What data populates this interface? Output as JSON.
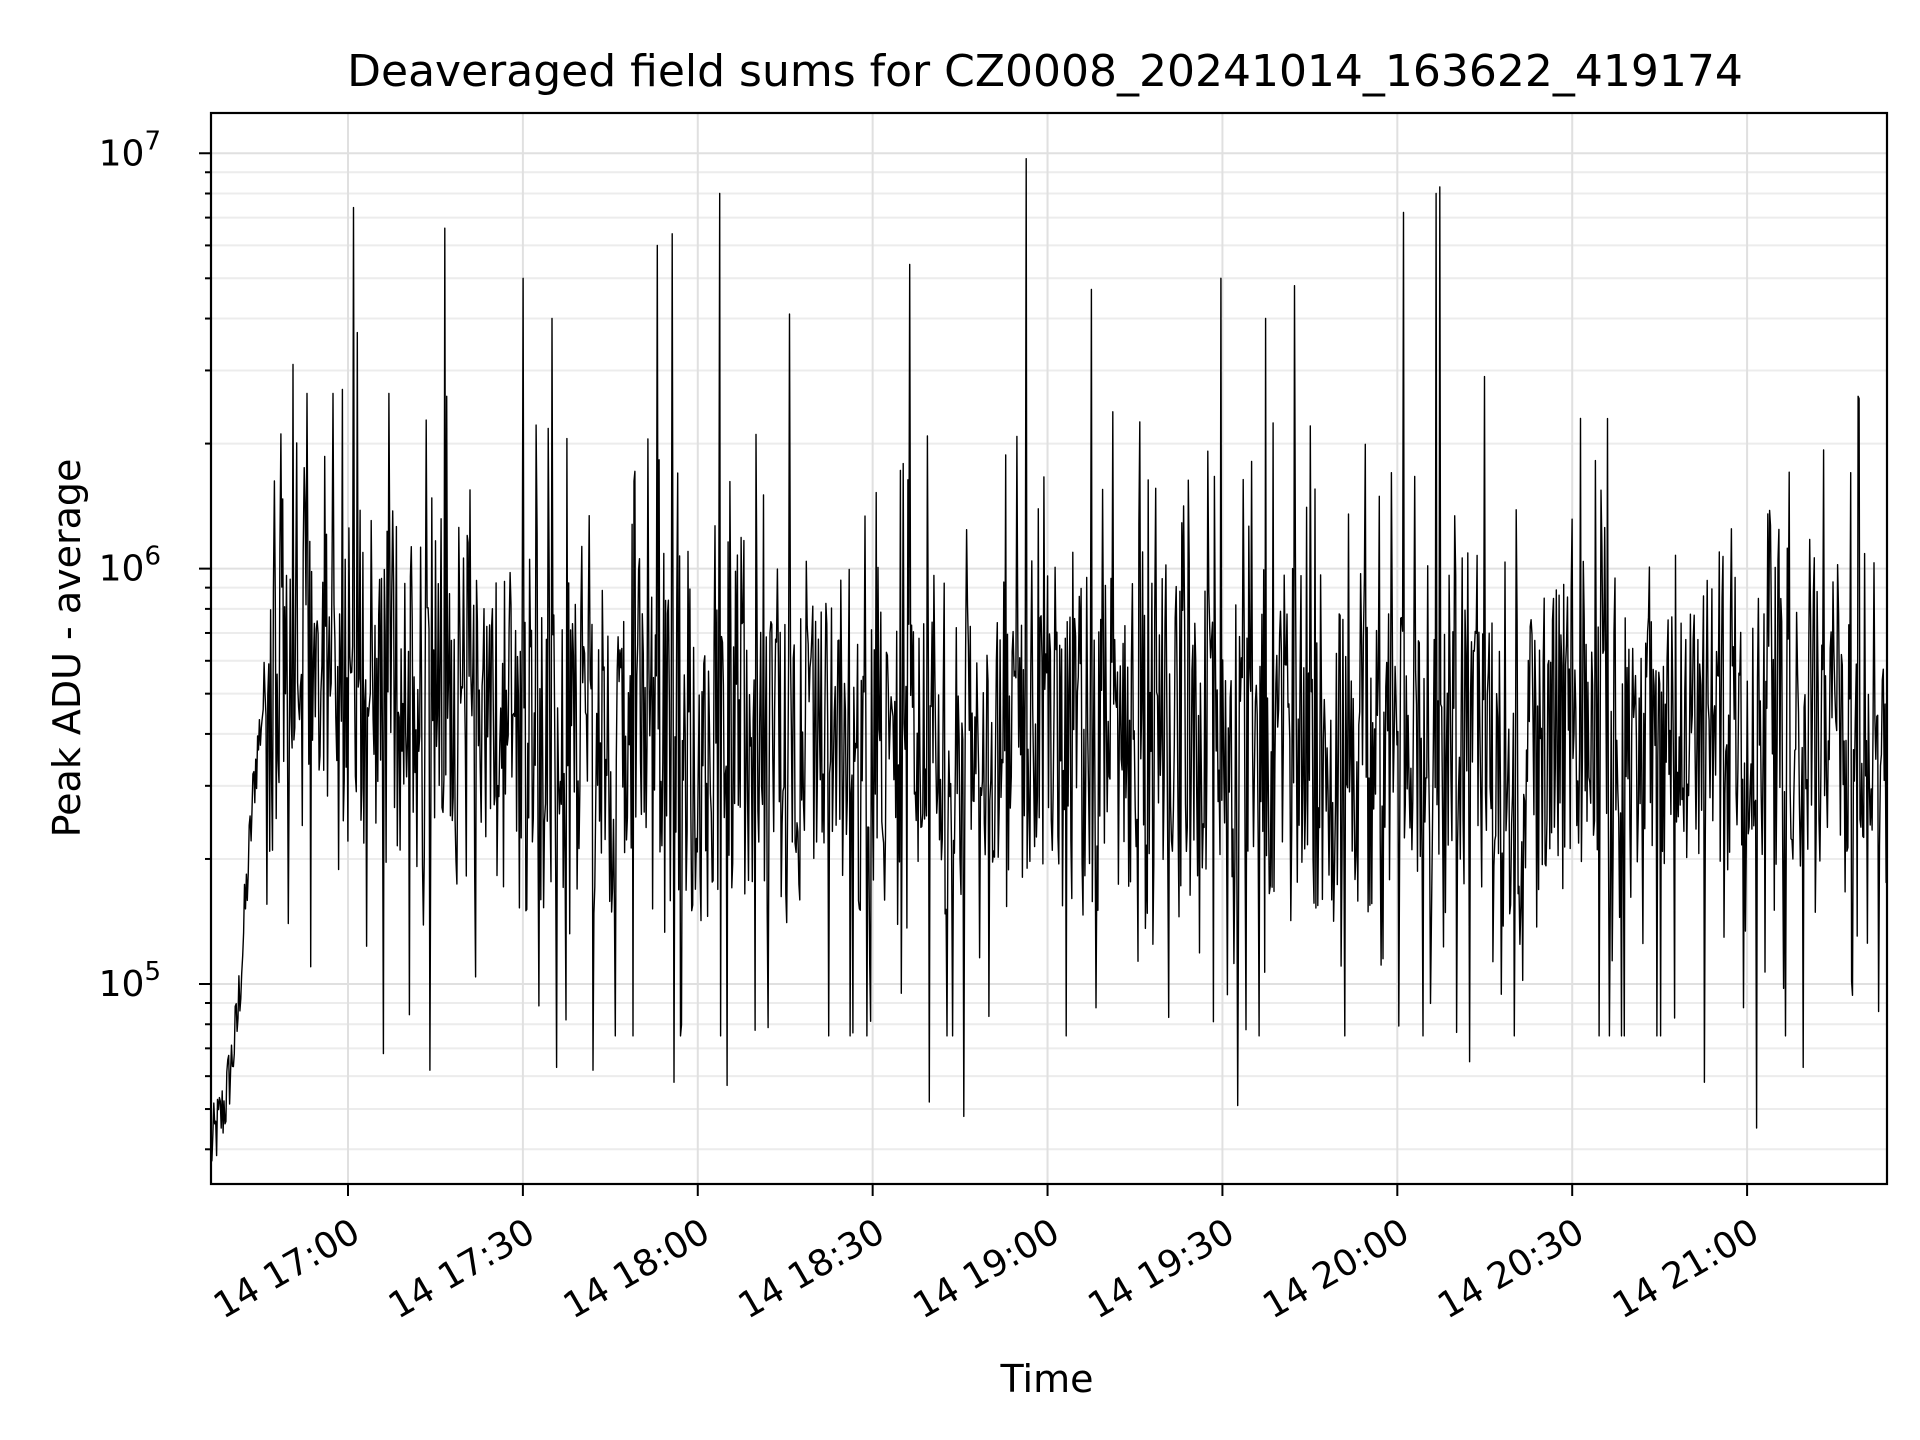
{
  "chart_data": {
    "type": "line",
    "title": "Deaveraged field sums for CZ0008_20241014_163622_419174",
    "xlabel": "Time",
    "ylabel": "Peak ADU - average",
    "y_scale": "log",
    "ylim": [
      33000,
      12500000
    ],
    "xlim": [
      "2024-10-14 16:36:30",
      "2024-10-14 21:24:00"
    ],
    "grid": "on (major and minor y)",
    "x_ticks": [
      "2024-10-14 17:00",
      "2024-10-14 17:30",
      "2024-10-14 18:00",
      "2024-10-14 18:30",
      "2024-10-14 19:00",
      "2024-10-14 19:30",
      "2024-10-14 20:00",
      "2024-10-14 20:30",
      "2024-10-14 21:00"
    ],
    "x_tick_labels": [
      "14 17:00",
      "14 17:30",
      "14 18:00",
      "14 18:30",
      "14 19:00",
      "14 19:30",
      "14 20:00",
      "14 20:30",
      "14 21:00"
    ],
    "y_ticks": [
      100000,
      1000000,
      10000000
    ],
    "y_tick_labels": [
      {
        "base": "10",
        "exp": "5"
      },
      {
        "base": "10",
        "exp": "6"
      },
      {
        "base": "10",
        "exp": "7"
      }
    ],
    "series": [
      {
        "color": "#000000",
        "baseline": [
          {
            "x": "2024-10-14 16:36:30",
            "y": 40000
          },
          {
            "x": "2024-10-14 16:39:00",
            "y": 52000
          },
          {
            "x": "2024-10-14 16:41:00",
            "y": 80000
          },
          {
            "x": "2024-10-14 16:42:30",
            "y": 160000
          },
          {
            "x": "2024-10-14 16:44:00",
            "y": 320000
          },
          {
            "x": "2024-10-14 16:46:00",
            "y": 550000
          },
          {
            "x": "2024-10-14 16:50:00",
            "y": 650000
          },
          {
            "x": "2024-10-14 17:30:00",
            "y": 420000
          },
          {
            "x": "2024-10-14 18:30:00",
            "y": 380000
          },
          {
            "x": "2024-10-14 19:30:00",
            "y": 400000
          },
          {
            "x": "2024-10-14 20:30:00",
            "y": 380000
          },
          {
            "x": "2024-10-14 21:24:00",
            "y": 420000
          }
        ],
        "spikes": [
          {
            "x": "2024-10-14 16:50:30",
            "y": 3100000
          },
          {
            "x": "2024-10-14 16:59:00",
            "y": 2700000
          },
          {
            "x": "2024-10-14 17:01:00",
            "y": 7400000
          },
          {
            "x": "2024-10-14 17:01:40",
            "y": 3700000
          },
          {
            "x": "2024-10-14 17:16:40",
            "y": 6600000
          },
          {
            "x": "2024-10-14 17:17:00",
            "y": 2600000
          },
          {
            "x": "2024-10-14 17:30:00",
            "y": 5000000
          },
          {
            "x": "2024-10-14 17:35:00",
            "y": 4000000
          },
          {
            "x": "2024-10-14 17:53:00",
            "y": 6000000
          },
          {
            "x": "2024-10-14 17:55:40",
            "y": 6400000
          },
          {
            "x": "2024-10-14 18:03:50",
            "y": 8000000
          },
          {
            "x": "2024-10-14 18:15:40",
            "y": 4100000
          },
          {
            "x": "2024-10-14 18:36:20",
            "y": 5400000
          },
          {
            "x": "2024-10-14 18:56:20",
            "y": 9700000
          },
          {
            "x": "2024-10-14 19:07:30",
            "y": 4700000
          },
          {
            "x": "2024-10-14 19:29:40",
            "y": 5000000
          },
          {
            "x": "2024-10-14 19:37:20",
            "y": 4000000
          },
          {
            "x": "2024-10-14 19:42:20",
            "y": 4800000
          },
          {
            "x": "2024-10-14 20:01:00",
            "y": 7200000
          },
          {
            "x": "2024-10-14 20:07:20",
            "y": 8300000
          },
          {
            "x": "2024-10-14 20:06:40",
            "y": 8000000
          },
          {
            "x": "2024-10-14 20:15:00",
            "y": 2900000
          },
          {
            "x": "2024-10-14 20:31:30",
            "y": 2300000
          },
          {
            "x": "2024-10-14 21:19:00",
            "y": 2600000
          }
        ],
        "dips": [
          {
            "x": "2024-10-14 16:53:40",
            "y": 110000
          },
          {
            "x": "2024-10-14 17:06:00",
            "y": 68000
          },
          {
            "x": "2024-10-14 17:14:00",
            "y": 62000
          },
          {
            "x": "2024-10-14 17:35:50",
            "y": 63000
          },
          {
            "x": "2024-10-14 17:42:00",
            "y": 62000
          },
          {
            "x": "2024-10-14 17:56:00",
            "y": 58000
          },
          {
            "x": "2024-10-14 18:05:00",
            "y": 57000
          },
          {
            "x": "2024-10-14 18:39:40",
            "y": 52000
          },
          {
            "x": "2024-10-14 18:45:40",
            "y": 48000
          },
          {
            "x": "2024-10-14 19:32:40",
            "y": 51000
          },
          {
            "x": "2024-10-14 20:12:20",
            "y": 65000
          },
          {
            "x": "2024-10-14 20:52:40",
            "y": 58000
          },
          {
            "x": "2024-10-14 21:01:40",
            "y": 45000
          },
          {
            "x": "2024-10-14 21:09:40",
            "y": 63000
          }
        ],
        "noise_range": [
          150000,
          1200000
        ]
      }
    ]
  }
}
